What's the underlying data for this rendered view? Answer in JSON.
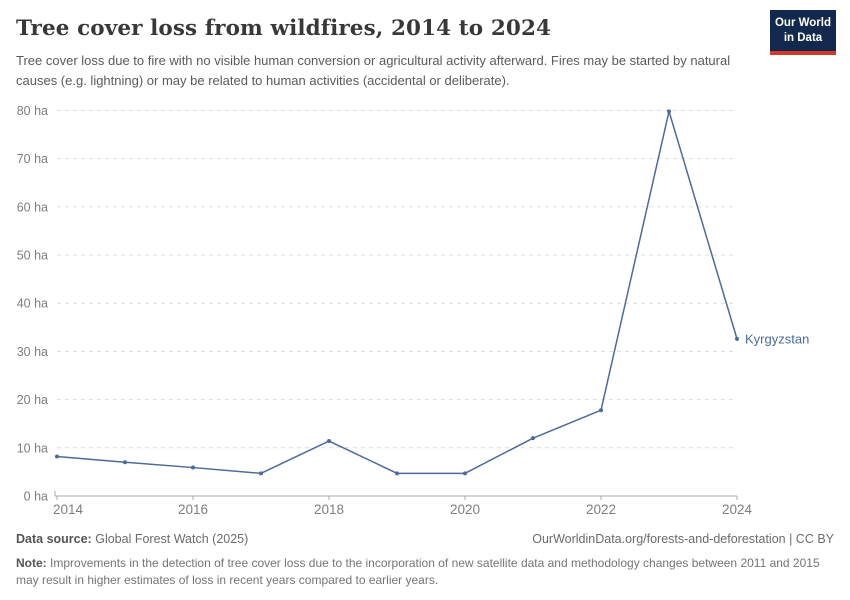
{
  "header": {
    "title": "Tree cover loss from wildfires, 2014 to 2024",
    "subtitle": "Tree cover loss due to fire with no visible human conversion or agricultural activity afterward. Fires may be started by natural causes (e.g. lightning) or may be related to human activities (accidental or deliberate).",
    "logo": {
      "line1": "Our World",
      "line2": "in Data",
      "bg_color": "#12294d",
      "stripe_color": "#d2382c"
    }
  },
  "chart_data": {
    "type": "line",
    "title": "Tree cover loss from wildfires, 2014 to 2024",
    "x": [
      2014,
      2015,
      2016,
      2017,
      2018,
      2019,
      2020,
      2021,
      2022,
      2023,
      2024
    ],
    "series": [
      {
        "name": "Kyrgyzstan",
        "color": "#4c6a9c",
        "values": [
          8.2,
          7.0,
          5.9,
          4.7,
          11.4,
          4.7,
          4.7,
          12.0,
          17.8,
          79.8,
          32.6
        ]
      }
    ],
    "xlabel": "",
    "ylabel": "",
    "unit": "ha",
    "xlim": [
      2014,
      2024
    ],
    "ylim": [
      0,
      80
    ],
    "x_ticks": [
      2014,
      2016,
      2018,
      2020,
      2022,
      2024
    ],
    "y_ticks": [
      0,
      10,
      20,
      30,
      40,
      50,
      60,
      70,
      80
    ],
    "y_tick_labels": [
      "0 ha",
      "10 ha",
      "20 ha",
      "30 ha",
      "40 ha",
      "50 ha",
      "60 ha",
      "70 ha",
      "80 ha"
    ],
    "grid": "horizontal-dashed",
    "legend_position": "end-of-line",
    "end_label": "Kyrgyzstan",
    "colors": {
      "grid": "#dcdcdc",
      "axis": "#a9a9a9",
      "tick_text": "#7e7e7e"
    }
  },
  "footer": {
    "data_source_label": "Data source:",
    "data_source_value": "Global Forest Watch (2025)",
    "attribution": "OurWorldinData.org/forests-and-deforestation | CC BY",
    "note_label": "Note:",
    "note_text": "Improvements in the detection of tree cover loss due to the incorporation of new satellite data and methodology changes between 2011 and 2015 may result in higher estimates of loss in recent years compared to earlier years."
  }
}
